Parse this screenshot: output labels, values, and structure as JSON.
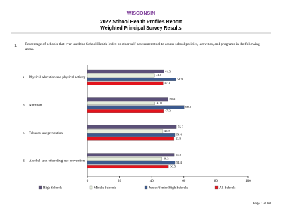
{
  "header": {
    "state": "WISCONSIN",
    "title": "2022 School Health Profiles Report",
    "subtitle": "Weighted Principal Survey Results"
  },
  "question": {
    "number": "1.",
    "text": "Percentage of schools that ever used the School Health Index or other self-assessment tool to assess school policies, activities, and programs in the following areas."
  },
  "chart_data": {
    "type": "bar",
    "orientation": "horizontal",
    "category_letters": [
      "a.",
      "b.",
      "c.",
      "d."
    ],
    "categories": [
      "Physical education and physical activity",
      "Nutrition",
      "Tobacco-use prevention",
      "Alcohol- and other drug-use prevention"
    ],
    "series": [
      {
        "name": "High Schools",
        "color": "#5b5079",
        "values": [
          47.5,
          50.2,
          55.3,
          54.0
        ],
        "value_labels": [
          "47.5",
          "50.2",
          "55.3",
          "54.0"
        ]
      },
      {
        "name": "Middle Schools",
        "color": "#e6eedc",
        "values": [
          41.8,
          42.0,
          46.9,
          46.3
        ],
        "value_labels": [
          "41.8",
          "42.0",
          "46.9",
          "46.3"
        ]
      },
      {
        "name": "Junior/Senior High Schools",
        "color": "#3c5a8e",
        "values": [
          54.9,
          60.2,
          54.4,
          54.4
        ],
        "value_labels": [
          "54.9",
          "60.2",
          "54.4",
          "54.4"
        ]
      },
      {
        "name": "All Schools",
        "color": "#e3141d",
        "values": [
          47.1,
          47.3,
          53.9,
          50.5
        ],
        "value_labels": [
          "47.1",
          "47.3",
          "53.9",
          "50.5"
        ]
      }
    ],
    "xlim": [
      0,
      100
    ],
    "xticks": [
      0,
      20,
      40,
      60,
      80,
      100
    ]
  },
  "footer": {
    "page": "Page 1 of 88"
  }
}
